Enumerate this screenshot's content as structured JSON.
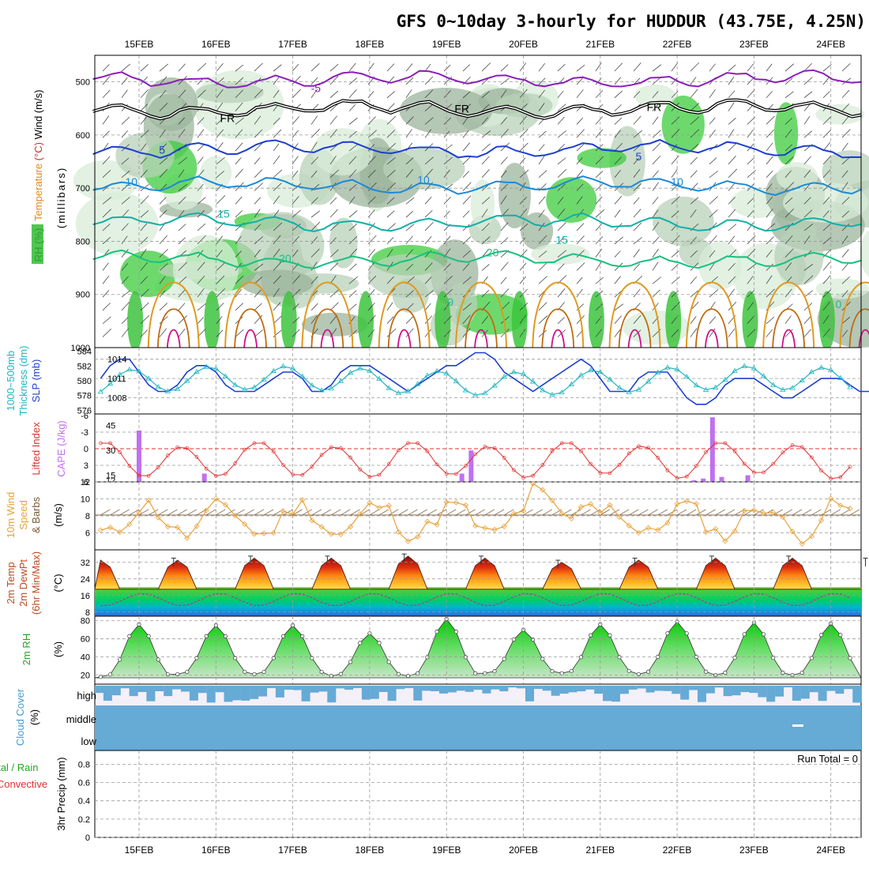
{
  "title": "GFS 0~10day 3-hourly for HUDDUR (43.75E, 4.25N)",
  "colors": {
    "purple": "#8a1fb8",
    "blue": "#1d3fd1",
    "lightblue": "#1a8ad8",
    "teal": "#10b0a8",
    "green": "#18c080",
    "orange": "#e09a20",
    "darkorange": "#c06a10",
    "magenta": "#d0108a",
    "cyan": "#22b6c0",
    "cape": "#c070f0",
    "li": "#e03030",
    "cloud": "#66aad6",
    "rhfill": "#33cc33",
    "wind": "#e8a23a",
    "barb": "#7a5a3a"
  },
  "chart_data": [
    {
      "name": "upper-air",
      "type": "heatmap",
      "title": "Wind (m/s)  Temperature (°C)  RH (%)",
      "ylabel": "millibars",
      "ylim": [
        1000,
        450
      ],
      "x_dates": [
        "15FEB",
        "16FEB",
        "17FEB",
        "18FEB",
        "19FEB",
        "20FEB",
        "21FEB",
        "22FEB",
        "23FEB",
        "24FEB"
      ],
      "y_ticks": [
        500,
        600,
        700,
        800,
        900,
        1000
      ],
      "temperature_contours": [
        {
          "label": "-5",
          "level_mb": 496,
          "color": "purple"
        },
        {
          "label": "FR",
          "level_mb": 551,
          "color": "black"
        },
        {
          "label": "5",
          "level_mb": 627,
          "color": "blue"
        },
        {
          "label": "10",
          "level_mb": 695,
          "color": "lightblue"
        },
        {
          "label": "15",
          "level_mb": 765,
          "color": "teal"
        },
        {
          "label": "20",
          "level_mb": 835,
          "color": "green"
        }
      ],
      "contour_labels": [
        {
          "text": "-5",
          "t": 2.3,
          "p": 512,
          "color": "purple"
        },
        {
          "text": "FR",
          "t": 1.15,
          "p": 568,
          "color": "black"
        },
        {
          "text": "FR",
          "t": 4.2,
          "p": 550,
          "color": "black"
        },
        {
          "text": "FR",
          "t": 6.7,
          "p": 547,
          "color": "black"
        },
        {
          "text": "5",
          "t": 0.3,
          "p": 628,
          "color": "blue"
        },
        {
          "text": "5",
          "t": 6.5,
          "p": 640,
          "color": "blue"
        },
        {
          "text": "10",
          "t": -0.1,
          "p": 688,
          "color": "lightblue"
        },
        {
          "text": "10",
          "t": 3.7,
          "p": 684,
          "color": "lightblue"
        },
        {
          "text": "10",
          "t": 7.0,
          "p": 688,
          "color": "lightblue"
        },
        {
          "text": "15",
          "t": 1.1,
          "p": 748,
          "color": "teal"
        },
        {
          "text": "15",
          "t": 5.5,
          "p": 797,
          "color": "teal"
        },
        {
          "text": "20",
          "t": 1.9,
          "p": 832,
          "color": "green"
        },
        {
          "text": "20",
          "t": 4.6,
          "p": 821,
          "color": "green"
        },
        {
          "text": "0",
          "t": 4.05,
          "p": 914,
          "color": "green"
        },
        {
          "text": "0",
          "t": 9.1,
          "p": 918,
          "color": "green"
        }
      ]
    },
    {
      "name": "thickness-slp",
      "type": "line",
      "ylabel_left": "1000~500mb Thickness (dm)",
      "ylabel_right": "SLP (mb)",
      "left_ticks": [
        576,
        578,
        580,
        582,
        584
      ],
      "right_ticks": [
        1008,
        1011,
        1014
      ],
      "slp": [
        1011,
        1013,
        1014,
        1014,
        1012,
        1010,
        1009,
        1009,
        1010,
        1012,
        1013,
        1013,
        1012,
        1010,
        1009,
        1009,
        1009,
        1010,
        1011,
        1012,
        1012,
        1011,
        1009,
        1009,
        1010,
        1012,
        1013,
        1013,
        1013,
        1012,
        1011,
        1010,
        1009,
        1010,
        1011,
        1012,
        1013,
        1013,
        1014,
        1015,
        1015,
        1014,
        1012,
        1011,
        1010,
        1009,
        1010,
        1011,
        1012,
        1013,
        1014,
        1013,
        1011,
        1009,
        1009,
        1009,
        1011,
        1012,
        1012,
        1012,
        1010,
        1008,
        1007,
        1007,
        1008,
        1010,
        1011,
        1011,
        1011,
        1010,
        1009,
        1008,
        1008,
        1009,
        1010,
        1011,
        1011,
        1011,
        1010,
        1009,
        1009,
        1010,
        1012,
        1012,
        1012,
        1010,
        1008,
        1008,
        1008
      ]
    },
    {
      "name": "stability",
      "type": "bar",
      "ylabel_left": "Lifted Index",
      "ylabel_right": "CAPE (J/kg)",
      "li_ticks": [
        "-6",
        "-3",
        "0",
        "3",
        "6"
      ],
      "cape_ticks": [
        "12",
        "15",
        "30",
        "45"
      ],
      "li_reference": 0,
      "cape_bars": [
        {
          "t": 0.0,
          "value": 42
        },
        {
          "t": 0.85,
          "value": 16
        },
        {
          "t": 1.9,
          "value": 11
        },
        {
          "t": 4.2,
          "value": 16
        },
        {
          "t": 4.32,
          "value": 30
        },
        {
          "t": 7.1,
          "value": 11
        },
        {
          "t": 7.22,
          "value": 12
        },
        {
          "t": 7.34,
          "value": 13
        },
        {
          "t": 7.46,
          "value": 50
        },
        {
          "t": 7.58,
          "value": 14
        },
        {
          "t": 7.92,
          "value": 15
        }
      ]
    },
    {
      "name": "10m-wind",
      "type": "line",
      "ylabel": "10m Wind Speed & Barbs (m/s)",
      "yticks": [
        6,
        8,
        10,
        12
      ],
      "ylim": [
        4,
        12
      ]
    },
    {
      "name": "2m-temperature",
      "type": "area",
      "ylabel": "2m Temp 2m DewPt (6hr Min/Max) (°C)",
      "yticks": [
        8,
        16,
        24,
        32
      ],
      "ylim": [
        6,
        38
      ],
      "daily_max": [
        33,
        34,
        34,
        35,
        34,
        32,
        33,
        34,
        34,
        33
      ],
      "daily_min": [
        19,
        19,
        19,
        19,
        19,
        19,
        19,
        19,
        19,
        19
      ],
      "dewpoint_range": [
        11,
        20
      ]
    },
    {
      "name": "2m-rh",
      "type": "area",
      "ylabel": "2m RH (%)",
      "yticks": [
        20,
        40,
        60,
        80
      ],
      "ylim": [
        10,
        85
      ],
      "daily_max": [
        76,
        75,
        75,
        66,
        82,
        70,
        76,
        79,
        78,
        77
      ],
      "daily_min": [
        18,
        21,
        21,
        19,
        19,
        22,
        22,
        21,
        20,
        20
      ]
    },
    {
      "name": "cloud-cover",
      "type": "area",
      "ylabel": "Cloud Cover (%)",
      "levels": [
        "high",
        "middle",
        "low"
      ]
    },
    {
      "name": "precipitation",
      "type": "bar",
      "ylabel_lines": [
        "Total / Rain",
        "Convective",
        "3hr Precip (mm)"
      ],
      "yticks": [
        "0",
        "0.2",
        "0.4",
        "0.6",
        "0.8"
      ],
      "run_total": "Run Total = 0"
    }
  ]
}
